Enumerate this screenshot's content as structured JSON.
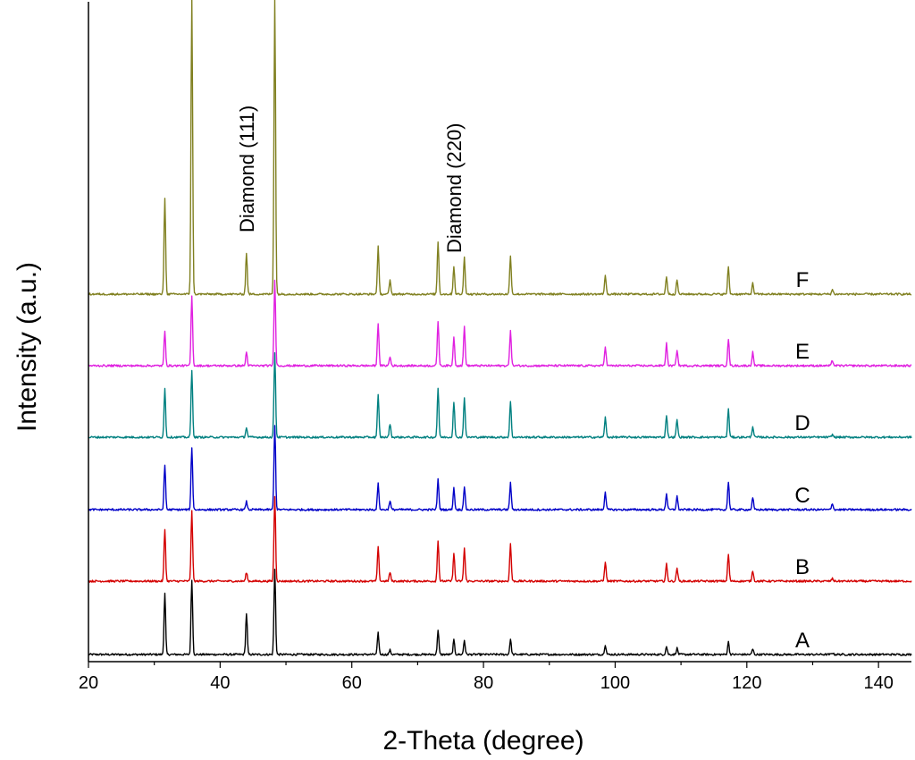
{
  "chart_data": {
    "type": "line",
    "xlabel": "2-Theta (degree)",
    "ylabel": "Intensity (a.u.)",
    "xlim": [
      20,
      145
    ],
    "x_ticks": [
      20,
      40,
      60,
      80,
      100,
      120,
      140
    ],
    "x_tick_labels": [
      "20",
      "40",
      "60",
      "80",
      "100",
      "120",
      "140"
    ],
    "y_ticks_shown": false,
    "grid": false,
    "series": [
      {
        "name": "A",
        "color": "#000000",
        "baseline": 0,
        "peaks": [
          [
            31.6,
            68
          ],
          [
            35.7,
            84
          ],
          [
            44.0,
            46
          ],
          [
            48.3,
            95
          ],
          [
            64.0,
            24
          ],
          [
            65.8,
            5
          ],
          [
            73.1,
            27
          ],
          [
            75.5,
            16
          ],
          [
            77.1,
            16
          ],
          [
            84.1,
            17
          ],
          [
            98.5,
            11
          ],
          [
            107.8,
            9
          ],
          [
            109.4,
            7
          ],
          [
            117.2,
            14
          ],
          [
            120.9,
            6
          ],
          [
            133.0,
            2
          ]
        ]
      },
      {
        "name": "B",
        "color": "#d40000",
        "baseline": 82,
        "peaks": [
          [
            31.6,
            58
          ],
          [
            35.7,
            78
          ],
          [
            44.0,
            10
          ],
          [
            48.3,
            95
          ],
          [
            64.0,
            38
          ],
          [
            65.8,
            10
          ],
          [
            73.1,
            46
          ],
          [
            75.5,
            31
          ],
          [
            77.1,
            37
          ],
          [
            84.1,
            42
          ],
          [
            98.5,
            22
          ],
          [
            107.8,
            19
          ],
          [
            109.4,
            15
          ],
          [
            117.2,
            30
          ],
          [
            120.9,
            12
          ],
          [
            133.0,
            3
          ]
        ]
      },
      {
        "name": "C",
        "color": "#0000c8",
        "baseline": 162,
        "peaks": [
          [
            31.6,
            50
          ],
          [
            35.7,
            70
          ],
          [
            44.0,
            9
          ],
          [
            48.3,
            95
          ],
          [
            64.0,
            29
          ],
          [
            65.8,
            10
          ],
          [
            73.1,
            34
          ],
          [
            75.5,
            24
          ],
          [
            77.1,
            26
          ],
          [
            84.1,
            30
          ],
          [
            98.5,
            20
          ],
          [
            107.8,
            18
          ],
          [
            109.4,
            15
          ],
          [
            117.2,
            31
          ],
          [
            120.9,
            13
          ],
          [
            133.0,
            7
          ]
        ]
      },
      {
        "name": "D",
        "color": "#008080",
        "baseline": 243,
        "peaks": [
          [
            31.6,
            54
          ],
          [
            35.7,
            75
          ],
          [
            44.0,
            11
          ],
          [
            48.3,
            95
          ],
          [
            64.0,
            47
          ],
          [
            65.8,
            15
          ],
          [
            73.1,
            55
          ],
          [
            75.5,
            40
          ],
          [
            77.1,
            45
          ],
          [
            84.1,
            40
          ],
          [
            98.5,
            22
          ],
          [
            107.8,
            25
          ],
          [
            109.4,
            20
          ],
          [
            117.2,
            31
          ],
          [
            120.9,
            12
          ],
          [
            133.0,
            3
          ]
        ]
      },
      {
        "name": "E",
        "color": "#e020e0",
        "baseline": 323,
        "peaks": [
          [
            31.6,
            38
          ],
          [
            35.7,
            78
          ],
          [
            44.0,
            15
          ],
          [
            48.3,
            95
          ],
          [
            64.0,
            48
          ],
          [
            65.8,
            10
          ],
          [
            73.1,
            50
          ],
          [
            75.5,
            32
          ],
          [
            77.1,
            44
          ],
          [
            84.1,
            40
          ],
          [
            98.5,
            22
          ],
          [
            107.8,
            25
          ],
          [
            109.4,
            18
          ],
          [
            117.2,
            30
          ],
          [
            120.9,
            15
          ],
          [
            133.0,
            6
          ]
        ]
      },
      {
        "name": "F",
        "color": "#808020",
        "baseline": 403,
        "peaks": [
          [
            31.6,
            108
          ],
          [
            35.7,
            330
          ],
          [
            44.0,
            46
          ],
          [
            48.3,
            330
          ],
          [
            64.0,
            53
          ],
          [
            65.8,
            15
          ],
          [
            73.1,
            59
          ],
          [
            75.5,
            31
          ],
          [
            77.1,
            42
          ],
          [
            84.1,
            43
          ],
          [
            98.5,
            21
          ],
          [
            107.8,
            20
          ],
          [
            109.4,
            16
          ],
          [
            117.2,
            30
          ],
          [
            120.9,
            12
          ],
          [
            133.0,
            5
          ]
        ]
      }
    ],
    "annotations": [
      {
        "text": "Diamond (111)",
        "x": 44.0
      },
      {
        "text": "Diamond (220)",
        "x": 75.5
      }
    ]
  }
}
